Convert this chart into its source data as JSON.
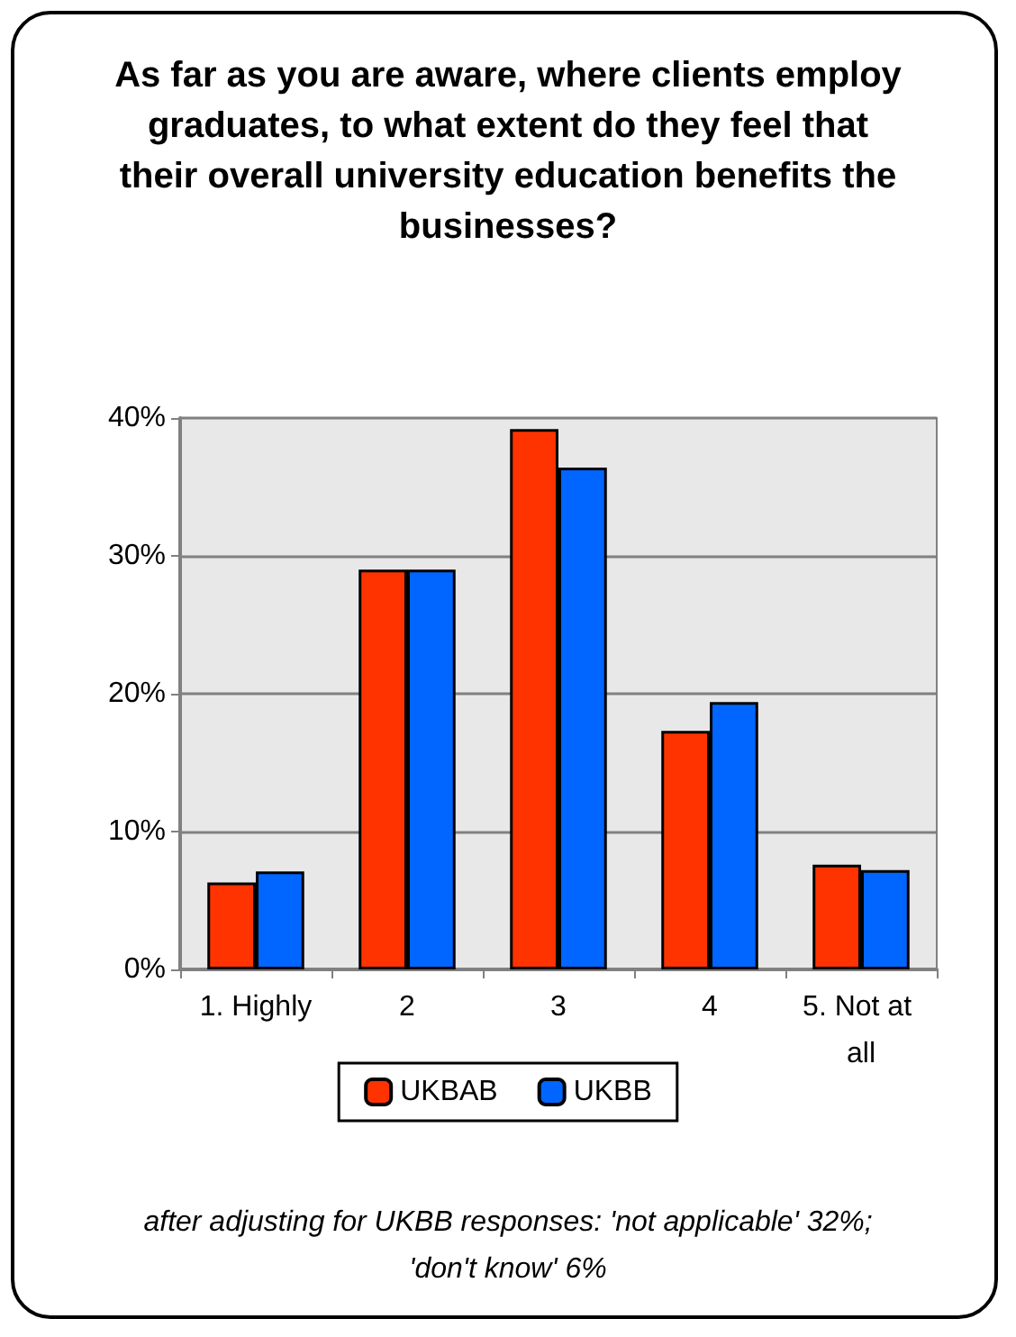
{
  "chart_data": {
    "type": "bar",
    "title": "As far as you are aware, where clients employ graduates, to what extent do they feel that their overall university education benefits the businesses?",
    "categories": [
      "1. Highly",
      "2",
      "3",
      "4",
      "5. Not at all"
    ],
    "series": [
      {
        "name": "UKBAB",
        "color": "#ff3300",
        "values": [
          6.3,
          29,
          39.2,
          17.3,
          7.6
        ]
      },
      {
        "name": "UKBB",
        "color": "#0066ff",
        "values": [
          7.1,
          29,
          36.4,
          19.4,
          7.2
        ]
      }
    ],
    "ylim": [
      0,
      40
    ],
    "yticks": [
      {
        "value": 0,
        "label": "0%"
      },
      {
        "value": 10,
        "label": "10%"
      },
      {
        "value": 20,
        "label": "20%"
      },
      {
        "value": 30,
        "label": "30%"
      },
      {
        "value": 40,
        "label": "40%"
      }
    ],
    "grid": "y",
    "legend": "bottom",
    "annotations": [
      "after adjusting for UKBB responses: 'not applicable' 32%; 'don't know' 6%"
    ]
  }
}
